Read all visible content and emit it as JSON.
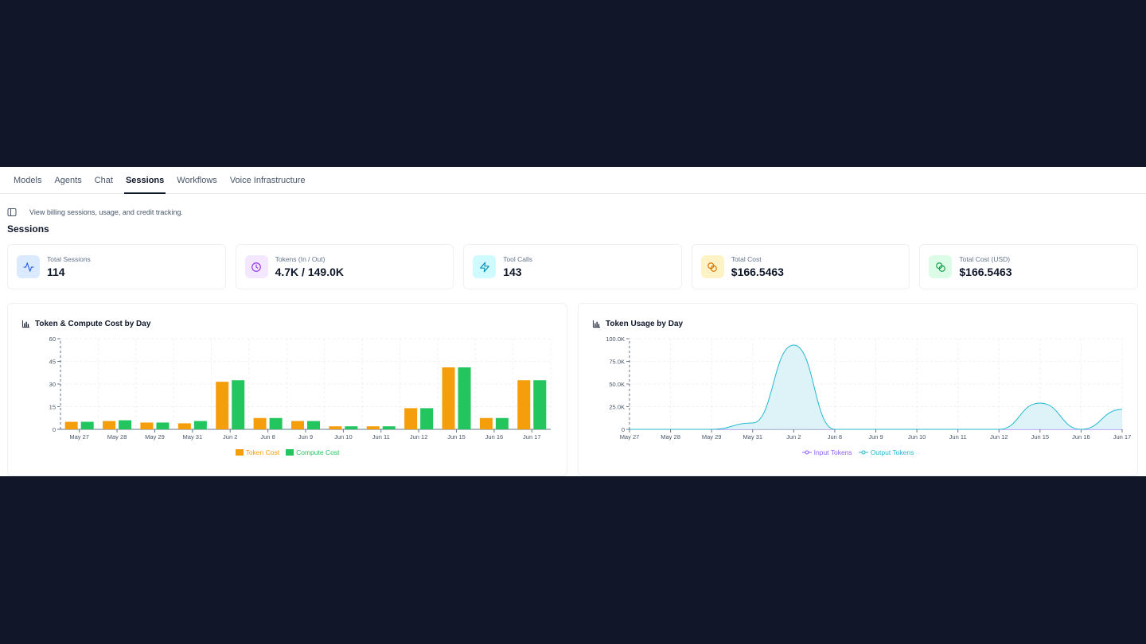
{
  "tabs": [
    {
      "label": "Models"
    },
    {
      "label": "Agents"
    },
    {
      "label": "Chat"
    },
    {
      "label": "Sessions",
      "active": true
    },
    {
      "label": "Workflows"
    },
    {
      "label": "Voice Infrastructure"
    }
  ],
  "subheader": {
    "text": "View billing sessions, usage, and credit tracking."
  },
  "page": {
    "title": "Sessions"
  },
  "stats": [
    {
      "label": "Total Sessions",
      "value": "114",
      "icon": "activity-icon",
      "bg": "#dbeafe",
      "color": "#2563eb"
    },
    {
      "label": "Tokens (In / Out)",
      "value": "4.7K / 149.0K",
      "icon": "clock-icon",
      "bg": "#f3e8ff",
      "color": "#9333ea"
    },
    {
      "label": "Tool Calls",
      "value": "143",
      "icon": "zap-icon",
      "bg": "#cffafe",
      "color": "#0891b2"
    },
    {
      "label": "Total Cost",
      "value": "$166.5463",
      "icon": "coins-icon",
      "bg": "#fef3c7",
      "color": "#d97706"
    },
    {
      "label": "Total Cost (USD)",
      "value": "$166.5463",
      "icon": "coins-icon",
      "bg": "#dcfce7",
      "color": "#16a34a"
    }
  ],
  "chart_data": [
    {
      "type": "bar",
      "title": "Token & Compute Cost by Day",
      "categories": [
        "May 27",
        "May 28",
        "May 29",
        "May 31",
        "Jun 2",
        "Jun 8",
        "Jun 9",
        "Jun 10",
        "Jun 11",
        "Jun 12",
        "Jun 15",
        "Jun 16",
        "Jun 17"
      ],
      "series": [
        {
          "name": "Token Cost",
          "color": "#f59e0b",
          "values": [
            5,
            5.5,
            4.5,
            4,
            31.5,
            7.5,
            5.5,
            2,
            2,
            14,
            41,
            7.5,
            32.5
          ]
        },
        {
          "name": "Compute Cost",
          "color": "#22c55e",
          "values": [
            5,
            6,
            4.5,
            5.5,
            32.5,
            7.5,
            5.5,
            2,
            2,
            14,
            41,
            7.5,
            32.5
          ]
        }
      ],
      "yticks": [
        "0",
        "15",
        "30",
        "45",
        "60"
      ],
      "ylim": [
        0,
        60
      ],
      "grid": true,
      "legend": "bottom"
    },
    {
      "type": "area",
      "title": "Token Usage by Day",
      "categories": [
        "May 27",
        "May 28",
        "May 29",
        "May 31",
        "Jun 2",
        "Jun 8",
        "Jun 9",
        "Jun 10",
        "Jun 11",
        "Jun 12",
        "Jun 15",
        "Jun 16",
        "Jun 17"
      ],
      "series": [
        {
          "name": "Input Tokens",
          "color": "#8b5cf6",
          "values": [
            0,
            0,
            0,
            300,
            1500,
            0,
            0,
            0,
            0,
            0,
            0,
            0,
            0
          ]
        },
        {
          "name": "Output Tokens",
          "color": "#22b8cf",
          "values": [
            0,
            0,
            0,
            7000,
            93000,
            0,
            0,
            0,
            0,
            0,
            29000,
            0,
            22000
          ]
        }
      ],
      "yticks": [
        "0",
        "25.0K",
        "50.0K",
        "75.0K",
        "100.0K"
      ],
      "ylim": [
        0,
        100000
      ],
      "grid": true,
      "legend": "bottom"
    }
  ]
}
